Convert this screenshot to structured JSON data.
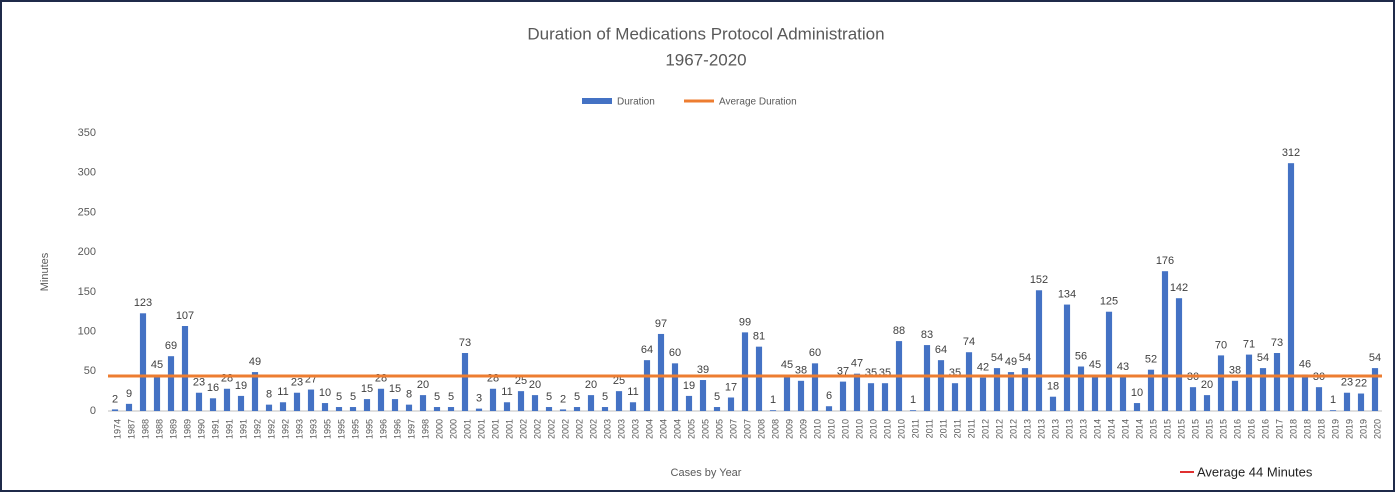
{
  "chart_data": {
    "type": "bar",
    "title": "Duration of Medications Protocol Administration",
    "subtitle": "1967-2020",
    "x_label": "Cases by Year",
    "y_label": "Minutes",
    "annotation": "Average  44 Minutes",
    "categories": [
      "1974",
      "1987",
      "1988",
      "1988",
      "1989",
      "1989",
      "1990",
      "1991",
      "1991",
      "1991",
      "1992",
      "1992",
      "1992",
      "1993",
      "1993",
      "1995",
      "1995",
      "1995",
      "1995",
      "1996",
      "1996",
      "1997",
      "1998",
      "2000",
      "2000",
      "2001",
      "2001",
      "2001",
      "2001",
      "2002",
      "2002",
      "2002",
      "2002",
      "2002",
      "2002",
      "2003",
      "2003",
      "2003",
      "2004",
      "2004",
      "2004",
      "2005",
      "2005",
      "2005",
      "2007",
      "2007",
      "2008",
      "2008",
      "2009",
      "2009",
      "2010",
      "2010",
      "2010",
      "2010",
      "2010",
      "2010",
      "2010",
      "2011",
      "2011",
      "2011",
      "2011",
      "2011",
      "2012",
      "2012",
      "2012",
      "2013",
      "2013",
      "2013",
      "2013",
      "2013",
      "2014",
      "2014",
      "2014",
      "2014",
      "2015",
      "2015",
      "2015",
      "2015",
      "2015",
      "2015",
      "2016",
      "2016",
      "2016",
      "2017",
      "2018",
      "2018",
      "2018",
      "2019",
      "2019",
      "2019",
      "2020"
    ],
    "series": [
      {
        "name": "Duration",
        "color": "#4472c4",
        "values": [
          2,
          9,
          123,
          45,
          69,
          107,
          23,
          16,
          28,
          19,
          49,
          8,
          11,
          23,
          27,
          10,
          5,
          5,
          15,
          28,
          15,
          8,
          20,
          5,
          5,
          73,
          3,
          28,
          11,
          25,
          20,
          5,
          2,
          5,
          20,
          5,
          25,
          11,
          64,
          97,
          60,
          19,
          39,
          5,
          17,
          99,
          81,
          1,
          45,
          38,
          60,
          6,
          37,
          47,
          35,
          35,
          88,
          1,
          83,
          64,
          35,
          74,
          42,
          54,
          49,
          54,
          152,
          18,
          134,
          56,
          45,
          125,
          43,
          10,
          52,
          176,
          142,
          30,
          20,
          70,
          38,
          71,
          54,
          73,
          312,
          46,
          30,
          1,
          23,
          22,
          54
        ]
      },
      {
        "name": "Average Duration",
        "color": "#ed7d31",
        "value": 44
      }
    ],
    "ylim": [
      0,
      350
    ],
    "yticks": [
      0,
      50,
      100,
      150,
      200,
      250,
      300,
      350
    ],
    "grid": false
  }
}
